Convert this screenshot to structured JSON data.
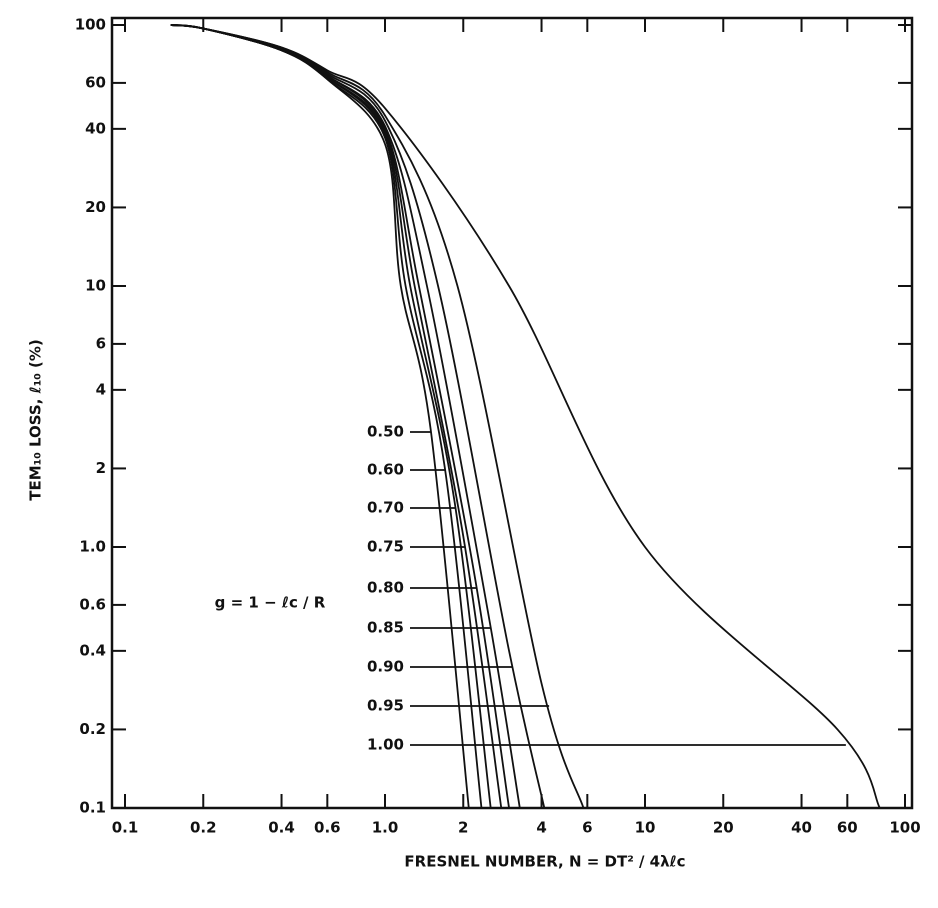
{
  "chart_data": {
    "type": "line",
    "xlabel": "FRESNEL NUMBER, N = DT² / 4λℓc",
    "ylabel": "TEM₁₀ LOSS, ℓ₁₀ (%)",
    "annotation": "g = 1 − ℓc / R",
    "xscale": "log",
    "yscale": "log",
    "xlim": [
      0.1,
      100
    ],
    "ylim": [
      0.1,
      100
    ],
    "xticks": [
      0.1,
      0.2,
      0.4,
      0.6,
      {
        "value": 1,
        "label": "1.0"
      },
      2,
      4,
      6,
      10,
      20,
      40,
      60,
      100
    ],
    "yticks": [
      0.1,
      0.2,
      0.4,
      0.6,
      {
        "value": 1,
        "label": "1.0"
      },
      2,
      4,
      6,
      10,
      20,
      40,
      60,
      100
    ],
    "color": "#111111",
    "series": [
      {
        "name": "0.50",
        "x": [
          0.15,
          0.2,
          0.4,
          0.6,
          1.0,
          1.15,
          1.5,
          2.1
        ],
        "values": [
          100,
          97,
          80,
          62,
          35,
          10,
          2.8,
          0.1
        ]
      },
      {
        "name": "0.60",
        "x": [
          0.15,
          0.2,
          0.4,
          0.6,
          1.0,
          1.2,
          1.7,
          2.35
        ],
        "values": [
          100,
          97,
          80,
          62,
          37,
          10,
          2.0,
          0.1
        ]
      },
      {
        "name": "0.70",
        "x": [
          0.15,
          0.2,
          0.4,
          0.6,
          1.0,
          1.25,
          1.85,
          2.55
        ],
        "values": [
          100,
          97,
          80,
          63,
          38,
          10,
          1.5,
          0.1
        ]
      },
      {
        "name": "0.75",
        "x": [
          0.15,
          0.2,
          0.4,
          0.6,
          1.0,
          1.3,
          2.0,
          2.8
        ],
        "values": [
          100,
          97,
          80,
          63,
          39,
          10,
          1.1,
          0.1
        ]
      },
      {
        "name": "0.80",
        "x": [
          0.15,
          0.2,
          0.4,
          0.6,
          1.0,
          1.35,
          2.2,
          3.0
        ],
        "values": [
          100,
          97,
          81,
          64,
          40,
          10,
          0.8,
          0.1
        ]
      },
      {
        "name": "0.85",
        "x": [
          0.15,
          0.2,
          0.4,
          0.6,
          1.0,
          1.45,
          2.5,
          3.3
        ],
        "values": [
          100,
          97,
          81,
          64,
          41,
          10,
          0.55,
          0.1
        ]
      },
      {
        "name": "0.90",
        "x": [
          0.15,
          0.2,
          0.4,
          0.6,
          1.0,
          1.6,
          3.0,
          4.1
        ],
        "values": [
          100,
          97,
          81,
          65,
          43,
          10,
          0.4,
          0.1
        ]
      },
      {
        "name": "0.95",
        "x": [
          0.15,
          0.2,
          0.4,
          0.6,
          1.0,
          1.9,
          4.0,
          5.8
        ],
        "values": [
          100,
          97,
          82,
          66,
          45,
          10,
          0.3,
          0.1
        ]
      },
      {
        "name": "1.00",
        "x": [
          0.15,
          0.2,
          0.4,
          0.6,
          1.0,
          3,
          10,
          55,
          80
        ],
        "values": [
          100,
          97,
          82,
          67,
          48,
          10,
          1,
          0.2,
          0.1
        ]
      }
    ]
  }
}
